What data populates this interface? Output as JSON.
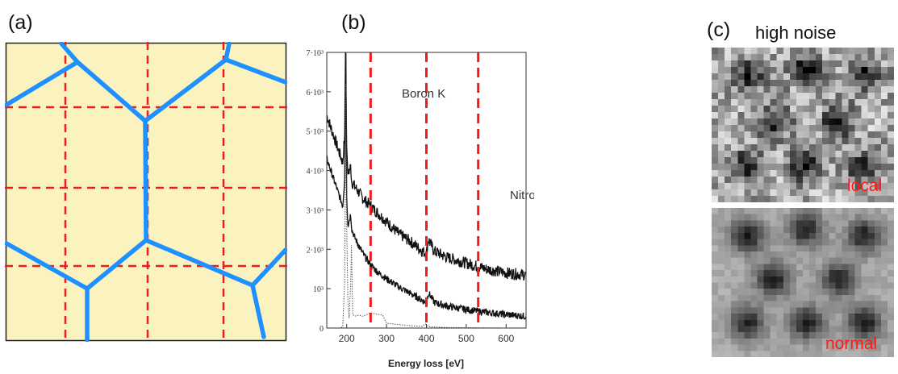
{
  "panel_a": {
    "label": "(a)"
  },
  "panel_b": {
    "label": "(b)",
    "annotations": {
      "boron": "Boron K",
      "nitrogen": "Nitrogen K"
    }
  },
  "panel_c": {
    "label": "(c)",
    "title": "high noise",
    "local_label": "local",
    "normal_label": "normal"
  },
  "colors": {
    "cell_fill": "#fbf3bf",
    "boundary_blue": "#1e90ff",
    "grid_red": "#ee1c1c"
  },
  "chart_data": {
    "type": "line",
    "xlabel": "Energy loss [eV]",
    "ylabel": "",
    "xlim": [
      150,
      650
    ],
    "ylim": [
      0,
      7000
    ],
    "x_ticks": [
      200,
      300,
      400,
      500,
      600
    ],
    "x_tick_labels": [
      "200",
      "300",
      "400",
      "500",
      "600"
    ],
    "y_ticks": [
      0,
      1000,
      2000,
      3000,
      4000,
      5000,
      6000,
      7000
    ],
    "y_tick_labels": [
      "0",
      "10³",
      "2·10³",
      "3·10³",
      "4·10³",
      "5·10³",
      "6·10³",
      "7·10³"
    ],
    "markers_x": [
      260,
      400,
      530
    ],
    "series": [
      {
        "style": "noisy-upper",
        "x": [
          150,
          170,
          190,
          195,
          197,
          200,
          203,
          210,
          213,
          220,
          240,
          260,
          280,
          300,
          330,
          360,
          390,
          400,
          405,
          420,
          450,
          500,
          550,
          600,
          650
        ],
        "y": [
          5400,
          4800,
          4200,
          4900,
          7000,
          4600,
          3900,
          4100,
          3700,
          3600,
          3300,
          3100,
          2900,
          2700,
          2400,
          2200,
          1950,
          1900,
          2250,
          1950,
          1800,
          1650,
          1500,
          1400,
          1350
        ]
      },
      {
        "style": "noisy-lower",
        "x": [
          150,
          170,
          190,
          195,
          198,
          200,
          203,
          210,
          213,
          220,
          240,
          260,
          280,
          300,
          330,
          360,
          390,
          400,
          405,
          420,
          450,
          500,
          550,
          600,
          650
        ],
        "y": [
          4300,
          3700,
          3100,
          3800,
          7000,
          3300,
          2600,
          2900,
          2500,
          2300,
          1900,
          1600,
          1400,
          1250,
          1050,
          880,
          700,
          640,
          900,
          650,
          560,
          470,
          400,
          340,
          300
        ]
      },
      {
        "style": "dotted",
        "x": [
          150,
          185,
          190,
          195,
          198,
          200,
          203,
          206,
          210,
          212,
          215,
          220,
          230,
          240,
          260,
          290,
          300,
          330,
          360,
          390,
          398,
          402,
          410,
          450,
          500,
          550,
          600,
          650
        ],
        "y": [
          0,
          0,
          40,
          1200,
          6200,
          2600,
          700,
          250,
          1100,
          2100,
          350,
          300,
          330,
          300,
          380,
          330,
          120,
          90,
          60,
          40,
          100,
          60,
          30,
          15,
          10,
          5,
          0,
          0
        ]
      }
    ]
  }
}
